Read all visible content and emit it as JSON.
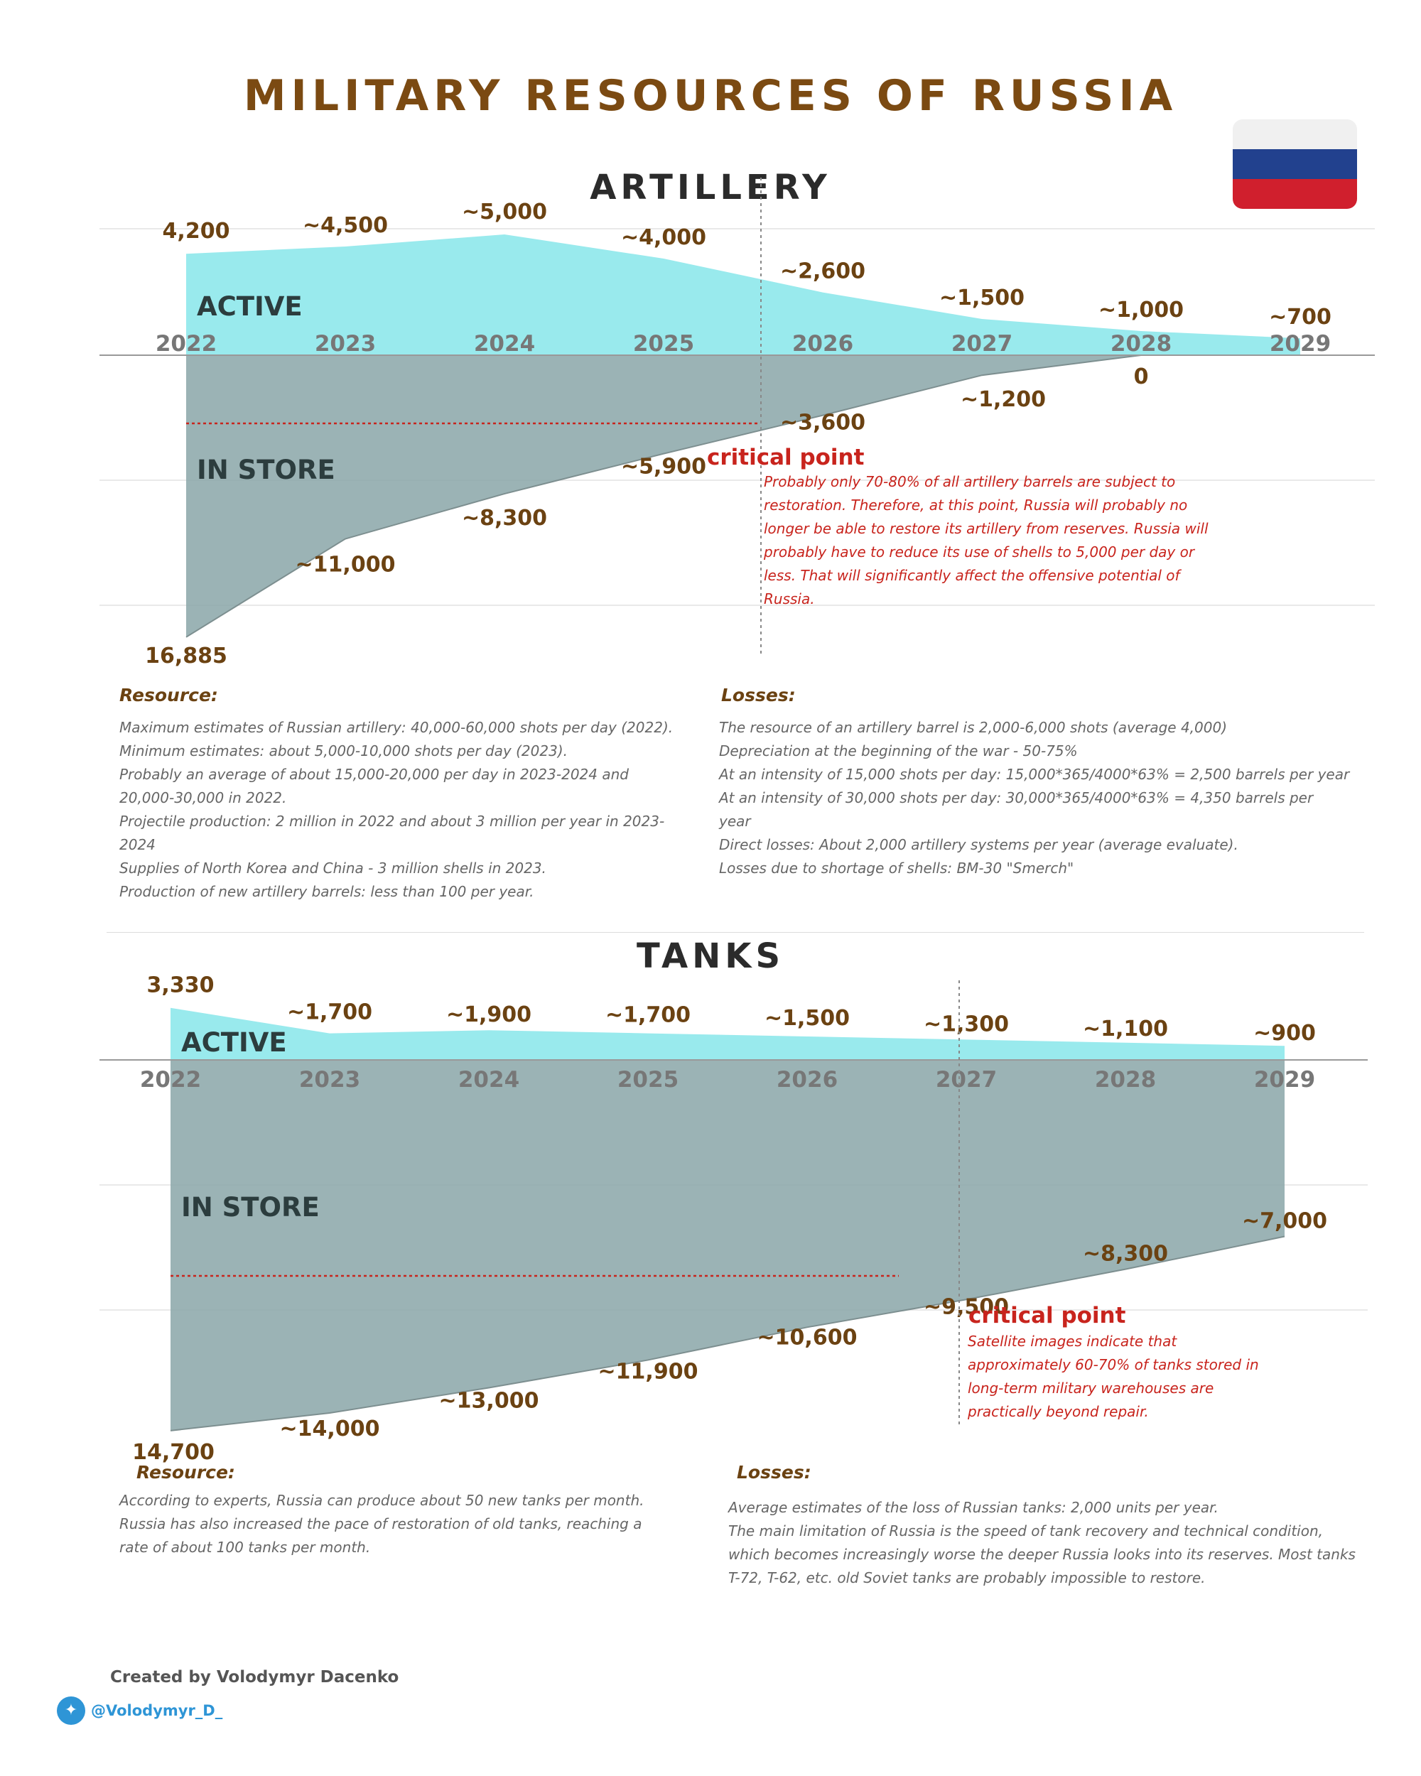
{
  "title": "MILITARY RESOURCES OF RUSSIA",
  "flag_colors": [
    "#f0f0f0",
    "#22418e",
    "#d01f2d"
  ],
  "colors": {
    "active": "#8ee8eb",
    "store": "#8aa6a8",
    "label": "#6b4212",
    "critical": "#c8241d"
  },
  "chart_data": [
    {
      "type": "area",
      "section": "artillery",
      "title": "ARTILLERY",
      "categories": [
        "2022",
        "2023",
        "2024",
        "2025",
        "2026",
        "2027",
        "2028",
        "2029"
      ],
      "series": [
        {
          "name": "ACTIVE",
          "values": [
            4200,
            4500,
            5000,
            4000,
            2600,
            1500,
            1000,
            700
          ],
          "labels": [
            "4,200",
            "~4,500",
            "~5,000",
            "~4,000",
            "~2,600",
            "~1,500",
            "~1,000",
            "~700"
          ]
        },
        {
          "name": "IN STORE",
          "values": [
            16885,
            11000,
            8300,
            5900,
            3600,
            1200,
            0,
            0
          ],
          "labels": [
            "16,885",
            "~11,000",
            "~8,300",
            "~5,900",
            "~3,600",
            "~1,200",
            "0",
            ""
          ]
        }
      ],
      "critical_point": {
        "label": "critical point",
        "after": "2025",
        "text": [
          "Probably only 70-80% of all artillery barrels are subject to",
          "restoration. Therefore, at this point, Russia will probably no",
          "longer be able to restore its artillery from reserves. Russia will",
          "probably have to reduce its use of shells to 5,000 per day or",
          "less. That will significantly affect the offensive potential of",
          "Russia."
        ]
      }
    },
    {
      "type": "area",
      "section": "tanks",
      "title": "TANKS",
      "categories": [
        "2022",
        "2023",
        "2024",
        "2025",
        "2026",
        "2027",
        "2028",
        "2029"
      ],
      "series": [
        {
          "name": "ACTIVE",
          "values": [
            3330,
            1700,
            1900,
            1700,
            1500,
            1300,
            1100,
            900
          ],
          "labels": [
            "3,330",
            "~1,700",
            "~1,900",
            "~1,700",
            "~1,500",
            "~1,300",
            "~1,100",
            "~900"
          ]
        },
        {
          "name": "IN STORE",
          "values": [
            14700,
            14000,
            13000,
            11900,
            10600,
            9500,
            8300,
            7000
          ],
          "labels": [
            "14,700",
            "~14,000",
            "~13,000",
            "~11,900",
            "~10,600",
            "~9,500",
            "~8,300",
            "~7,000"
          ]
        }
      ],
      "critical_point": {
        "label": "critical point",
        "at": "2027",
        "text": [
          "Satellite images indicate that",
          "approximately 60-70% of tanks stored in",
          "long-term military warehouses are",
          "practically beyond repair."
        ]
      }
    }
  ],
  "artillery_notes": {
    "resource_head": "Resource:",
    "resource": [
      "Maximum estimates of Russian artillery: 40,000-60,000 shots per day (2022).",
      "Minimum estimates: about 5,000-10,000 shots per day (2023).",
      "Probably an average of about 15,000-20,000 per day in 2023-2024 and",
      "20,000-30,000 in 2022.",
      "Projectile production: 2 million in 2022 and about 3 million per year in 2023-",
      "2024",
      "Supplies of North Korea and China - 3 million shells in 2023.",
      "Production of new artillery barrels: less than 100 per year."
    ],
    "losses_head": "Losses:",
    "losses": [
      "The resource of an artillery barrel is 2,000-6,000 shots (average 4,000)",
      "Depreciation at the beginning of the war - 50-75%",
      "At an intensity of 15,000 shots per day: 15,000*365/4000*63% = 2,500 barrels per year",
      "At an intensity of 30,000 shots per day:  30,000*365/4000*63% = 4,350 barrels per",
      "year",
      "Direct losses: About 2,000 artillery systems per year (average evaluate).",
      "Losses due to shortage of shells: BM-30 \"Smerch\""
    ]
  },
  "tank_notes": {
    "resource_head": "Resource:",
    "resource": [
      "According to experts, Russia can produce about 50 new tanks per month.",
      "Russia has also increased the pace of restoration of old tanks, reaching a",
      "rate of about 100 tanks per month."
    ],
    "losses_head": "Losses:",
    "losses": [
      "Average estimates of the loss of Russian tanks: 2,000 units per year.",
      "The main limitation of Russia is the speed of tank recovery and technical condition,",
      "which becomes increasingly worse the deeper Russia looks into its reserves. Most tanks",
      "T-72, T-62, etc. old Soviet tanks are probably impossible to restore."
    ]
  },
  "footer": {
    "credit": "Created by Volodymyr Dacenko",
    "handle": "@Volodymyr_D_",
    "icon": "twitter-bird-icon"
  }
}
